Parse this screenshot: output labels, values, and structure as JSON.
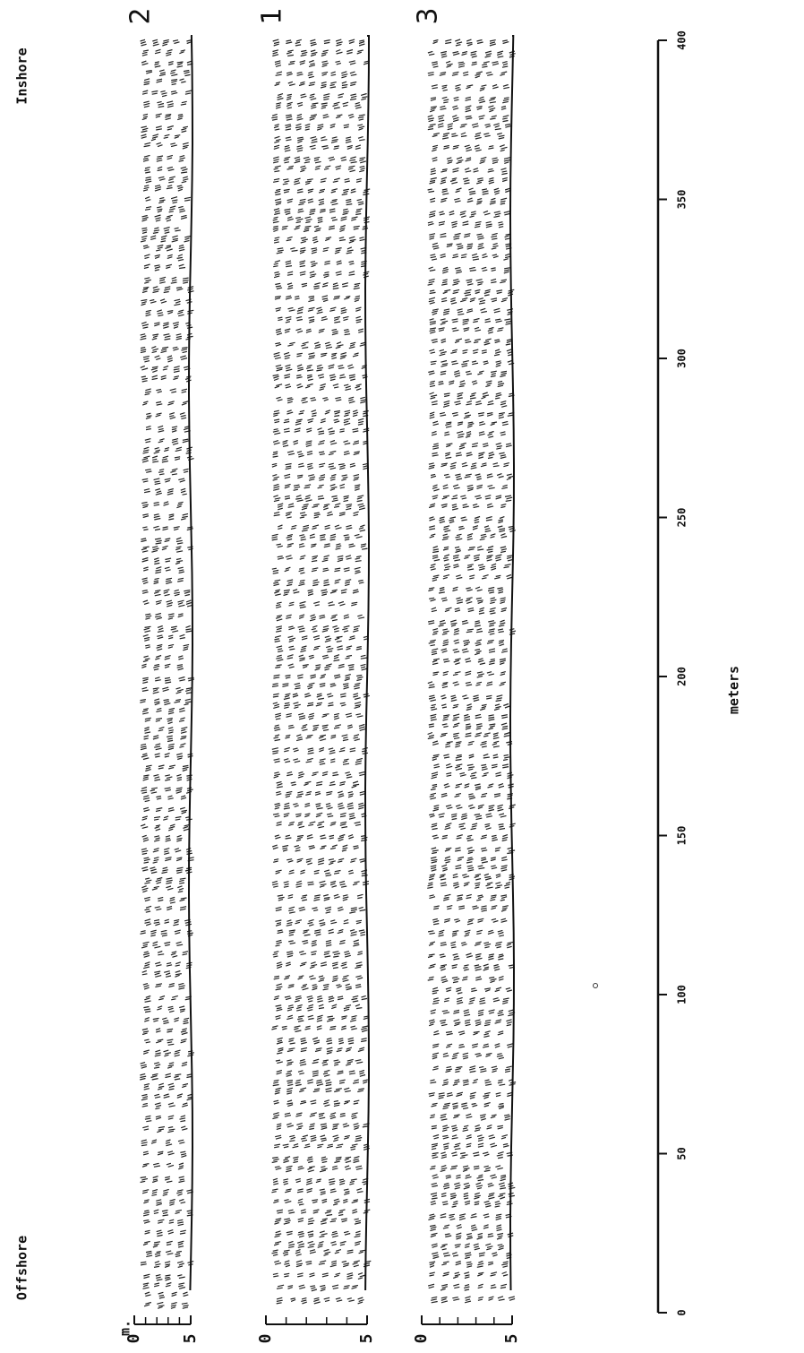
{
  "labels": {
    "offshore": "Offshore",
    "inshore": "Inshore",
    "depth_unit": "m.",
    "distance_unit": "meters"
  },
  "transects": [
    {
      "label": "2",
      "depth_ticks": [
        0,
        5
      ]
    },
    {
      "label": "1",
      "depth_ticks": [
        0,
        5
      ]
    },
    {
      "label": "3",
      "depth_ticks": [
        0,
        5
      ]
    }
  ],
  "distance_ticks": [
    0,
    50,
    100,
    150,
    200,
    250,
    300,
    350,
    400
  ]
}
